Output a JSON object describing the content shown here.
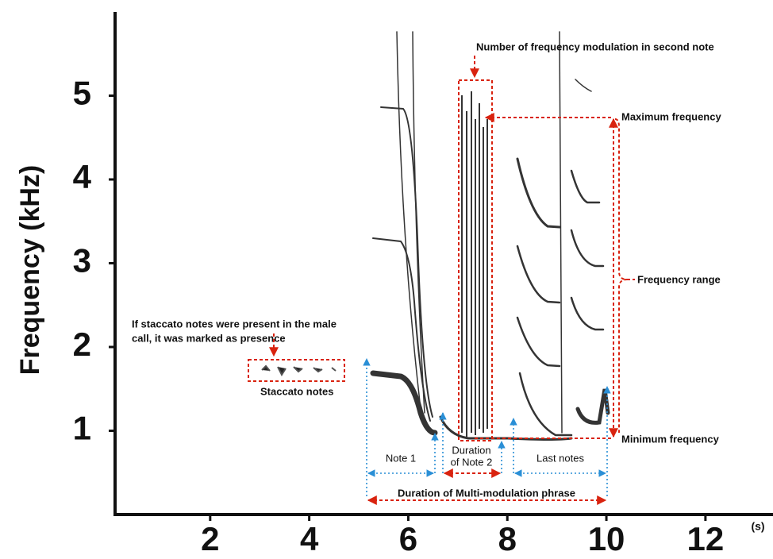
{
  "chart_data": {
    "type": "spectrogram",
    "ylabel": "Frequency (kHz)",
    "xunit": "(s)",
    "xlim": [
      0.08,
      13.3
    ],
    "ylim": [
      0,
      6
    ],
    "xticks": [
      2,
      4,
      6,
      8,
      10,
      12
    ],
    "yticks": [
      1,
      2,
      3,
      4,
      5
    ],
    "annotations": {
      "modulation": "Number of frequency modulation in second note",
      "max_freq": "Maximum frequency",
      "range": "Frequency range",
      "min_freq": "Minimum frequency",
      "staccato_note_1": "If staccato notes were present in the male",
      "staccato_note_2": "call, it was marked as presence",
      "staccato": "Staccato notes",
      "note1": "Note 1",
      "note2_1": "Duration",
      "note2_2": "of Note 2",
      "last": "Last notes",
      "phrase": "Duration of Multi-modulation phrase"
    }
  }
}
